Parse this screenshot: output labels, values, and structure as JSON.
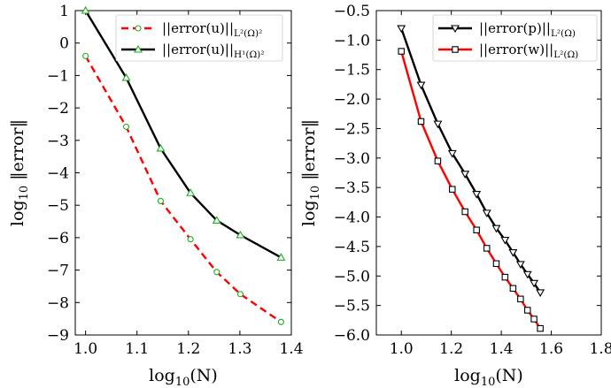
{
  "chart_data": [
    {
      "type": "line",
      "xlabel": "log10(N)",
      "ylabel": "log10 ||error||",
      "xlim": [
        0.98,
        1.4
      ],
      "ylim": [
        -9,
        1
      ],
      "xticks": [
        1.0,
        1.1,
        1.2,
        1.3,
        1.4
      ],
      "xtick_labels": [
        "1.0",
        "1.1",
        "1.2",
        "1.3",
        "1.4"
      ],
      "yticks": [
        1,
        0,
        -1,
        -2,
        -3,
        -4,
        -5,
        -6,
        -7,
        -8,
        -9
      ],
      "ytick_labels": [
        "1",
        "0",
        "−1",
        "−2",
        "−3",
        "−4",
        "−5",
        "−6",
        "−7",
        "−8",
        "−9"
      ],
      "grid": false,
      "legend_position": "top-right",
      "series": [
        {
          "name": "||error(u)||_{L²(Ω)²}",
          "color": "#ff0000",
          "line_style": "dashed",
          "marker": "circle",
          "marker_color": "#22aa22",
          "x": [
            1.0,
            1.079,
            1.146,
            1.204,
            1.255,
            1.301,
            1.38
          ],
          "y": [
            -0.4,
            -2.58,
            -4.87,
            -6.05,
            -7.06,
            -7.74,
            -8.6
          ]
        },
        {
          "name": "||error(u)||_{H¹(Ω)²}",
          "color": "#000000",
          "line_style": "solid",
          "marker": "triangle-up",
          "marker_color": "#22aa22",
          "x": [
            1.0,
            1.079,
            1.146,
            1.204,
            1.255,
            1.301,
            1.38
          ],
          "y": [
            1.0,
            -1.07,
            -3.25,
            -4.62,
            -5.47,
            -5.92,
            -6.61
          ]
        }
      ]
    },
    {
      "type": "line",
      "xlabel": "log10(N)",
      "ylabel": "log10 ||error||",
      "xlim": [
        0.9,
        1.8
      ],
      "ylim": [
        -6.0,
        -0.5
      ],
      "xticks": [
        1.0,
        1.2,
        1.4,
        1.6,
        1.8
      ],
      "xtick_labels": [
        "1.0",
        "1.2",
        "1.4",
        "1.6",
        "1.8"
      ],
      "yticks": [
        -0.5,
        -1.0,
        -1.5,
        -2.0,
        -2.5,
        -3.0,
        -3.5,
        -4.0,
        -4.5,
        -5.0,
        -5.5,
        -6.0
      ],
      "ytick_labels": [
        "−0.5",
        "−1.0",
        "−1.5",
        "−2.0",
        "−2.5",
        "−3.0",
        "−3.5",
        "−4.0",
        "−4.5",
        "−5.0",
        "−5.5",
        "−6.0"
      ],
      "grid": false,
      "legend_position": "top-right",
      "series": [
        {
          "name": "||error(p)||_{L²(Ω)}",
          "color": "#000000",
          "line_style": "solid",
          "marker": "triangle-down",
          "marker_color": "#000000",
          "x": [
            1.0,
            1.079,
            1.146,
            1.204,
            1.255,
            1.301,
            1.342,
            1.38,
            1.415,
            1.447,
            1.477,
            1.505,
            1.531,
            1.556
          ],
          "y": [
            -0.8,
            -1.76,
            -2.42,
            -2.92,
            -3.27,
            -3.61,
            -3.93,
            -4.19,
            -4.39,
            -4.6,
            -4.8,
            -4.97,
            -5.12,
            -5.28
          ]
        },
        {
          "name": "||error(w)||_{L²(Ω)}",
          "color": "#ff0000",
          "line_style": "solid",
          "marker": "square",
          "marker_color": "#000000",
          "x": [
            1.0,
            1.079,
            1.146,
            1.204,
            1.255,
            1.301,
            1.342,
            1.38,
            1.415,
            1.447,
            1.477,
            1.505,
            1.531,
            1.556
          ],
          "y": [
            -1.19,
            -2.38,
            -3.05,
            -3.53,
            -3.91,
            -4.22,
            -4.53,
            -4.79,
            -5.02,
            -5.21,
            -5.39,
            -5.58,
            -5.73,
            -5.89
          ]
        }
      ]
    }
  ]
}
